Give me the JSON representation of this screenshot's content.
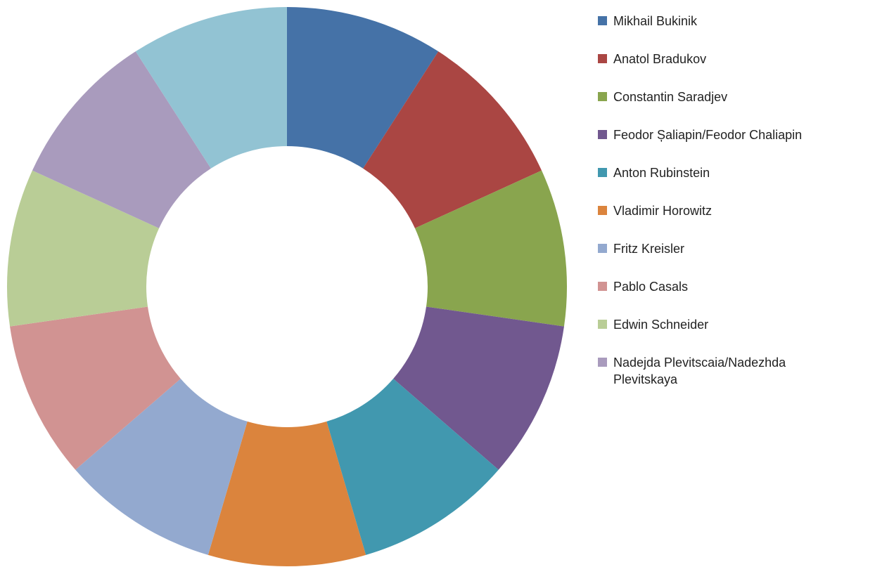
{
  "chart_data": {
    "type": "donut",
    "categories": [
      "Mikhail Bukinik",
      "Anatol Bradukov",
      "Constantin Saradjev",
      "Feodor Șaliapin/Feodor Chaliapin",
      "Anton Rubinstein",
      "Vladimir Horowitz",
      "Fritz Kreisler",
      "Pablo Casals",
      "Edwin Schneider",
      "Nadejda Plevitscaia/Nadezhda Plevitskaya",
      null
    ],
    "values": [
      1,
      1,
      1,
      1,
      1,
      1,
      1,
      1,
      1,
      1,
      1
    ],
    "colors": [
      "#4572a7",
      "#aa4643",
      "#89a54e",
      "#71588f",
      "#4198af",
      "#db843d",
      "#93a9cf",
      "#d19392",
      "#b9cd96",
      "#a99bbd",
      "#92c3d3"
    ],
    "legend": "right"
  }
}
